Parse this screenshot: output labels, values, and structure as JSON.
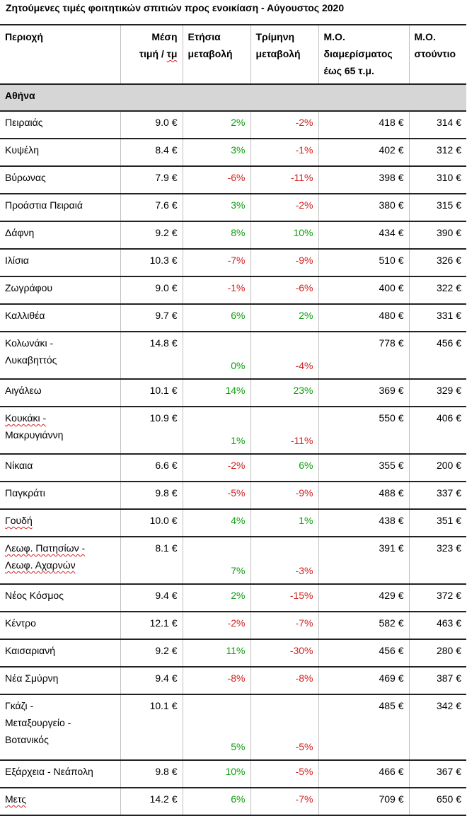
{
  "title": "Ζητούμενες τιμές φοιτητικών σπιτιών προς ενοικίαση - Αύγουστος 2020",
  "columns": [
    [
      "Περιοχή"
    ],
    [
      "Μέση",
      "τιμή / τμ"
    ],
    [
      "Ετήσια",
      "μεταβολή"
    ],
    [
      "Τρίμηνη",
      "μεταβολή"
    ],
    [
      "Μ.Ο.",
      "διαμερίσματος",
      "έως 65 τ.μ."
    ],
    [
      "Μ.Ο.",
      "στούντιο"
    ]
  ],
  "region": "Αθήνα",
  "rows": [
    {
      "name": [
        "Πειραιάς"
      ],
      "price": "9.0 €",
      "annual": "2%",
      "quarter": "-2%",
      "apt": "418 €",
      "studio": "314 €"
    },
    {
      "name": [
        "Κυψέλη"
      ],
      "price": "8.4 €",
      "annual": "3%",
      "quarter": "-1%",
      "apt": "402 €",
      "studio": "312 €"
    },
    {
      "name": [
        "Βύρωνας"
      ],
      "price": "7.9 €",
      "annual": "-6%",
      "quarter": "-11%",
      "apt": "398 €",
      "studio": "310 €"
    },
    {
      "name": [
        "Προάστια Πειραιά"
      ],
      "price": "7.6 €",
      "annual": "3%",
      "quarter": "-2%",
      "apt": "380 €",
      "studio": "315 €"
    },
    {
      "name": [
        "Δάφνη"
      ],
      "price": "9.2 €",
      "annual": "8%",
      "quarter": "10%",
      "apt": "434 €",
      "studio": "390 €"
    },
    {
      "name": [
        "Ιλίσια"
      ],
      "price": "10.3 €",
      "annual": "-7%",
      "quarter": "-9%",
      "apt": "510 €",
      "studio": "326 €"
    },
    {
      "name": [
        "Ζωγράφου"
      ],
      "price": "9.0 €",
      "annual": "-1%",
      "quarter": "-6%",
      "apt": "400 €",
      "studio": "322 €"
    },
    {
      "name": [
        "Καλλιθέα"
      ],
      "price": "9.7 €",
      "annual": "6%",
      "quarter": "2%",
      "apt": "480 €",
      "studio": "331 €"
    },
    {
      "name": [
        "Κολωνάκι -",
        "Λυκαβηττός"
      ],
      "price": "14.8 €",
      "annual": "0%",
      "quarter": "-4%",
      "apt": "778 €",
      "studio": "456 €"
    },
    {
      "name": [
        "Αιγάλεω"
      ],
      "price": "10.1 €",
      "annual": "14%",
      "quarter": "23%",
      "apt": "369 €",
      "studio": "329 €"
    },
    {
      "name": [
        "Κουκάκι -",
        "Μακρυγιάννη"
      ],
      "price": "10.9 €",
      "annual": "1%",
      "quarter": "-11%",
      "apt": "550 €",
      "studio": "406 €"
    },
    {
      "name": [
        "Νίκαια"
      ],
      "price": "6.6 €",
      "annual": "-2%",
      "quarter": "6%",
      "apt": "355 €",
      "studio": "200 €"
    },
    {
      "name": [
        "Παγκράτι"
      ],
      "price": "9.8 €",
      "annual": "-5%",
      "quarter": "-9%",
      "apt": "488 €",
      "studio": "337 €"
    },
    {
      "name": [
        "Γουδή"
      ],
      "price": "10.0 €",
      "annual": "4%",
      "quarter": "1%",
      "apt": "438 €",
      "studio": "351 €"
    },
    {
      "name": [
        "Λεωφ. Πατησίων -",
        "Λεωφ. Αχαρνών"
      ],
      "price": "8.1 €",
      "annual": "7%",
      "quarter": "-3%",
      "apt": "391 €",
      "studio": "323 €"
    },
    {
      "name": [
        "Νέος Κόσμος"
      ],
      "price": "9.4 €",
      "annual": "2%",
      "quarter": "-15%",
      "apt": "429 €",
      "studio": "372 €"
    },
    {
      "name": [
        "Κέντρο"
      ],
      "price": "12.1 €",
      "annual": "-2%",
      "quarter": "-7%",
      "apt": "582 €",
      "studio": "463 €"
    },
    {
      "name": [
        "Καισαριανή"
      ],
      "price": "9.2 €",
      "annual": "11%",
      "quarter": "-30%",
      "apt": "456 €",
      "studio": "280 €"
    },
    {
      "name": [
        "Νέα Σμύρνη"
      ],
      "price": "9.4 €",
      "annual": "-8%",
      "quarter": "-8%",
      "apt": "469 €",
      "studio": "387 €"
    },
    {
      "name": [
        "Γκάζι -",
        "Μεταξουργείο -",
        "Βοτανικός"
      ],
      "price": "10.1 €",
      "annual": "5%",
      "quarter": "-5%",
      "apt": "485 €",
      "studio": "342 €"
    },
    {
      "name": [
        "Εξάρχεια - Νεάπολη"
      ],
      "price": "9.8 €",
      "annual": "10%",
      "quarter": "-5%",
      "apt": "466 €",
      "studio": "367 €"
    },
    {
      "name": [
        "Μετς"
      ],
      "price": "14.2 €",
      "annual": "6%",
      "quarter": "-7%",
      "apt": "709 €",
      "studio": "650 €"
    }
  ]
}
